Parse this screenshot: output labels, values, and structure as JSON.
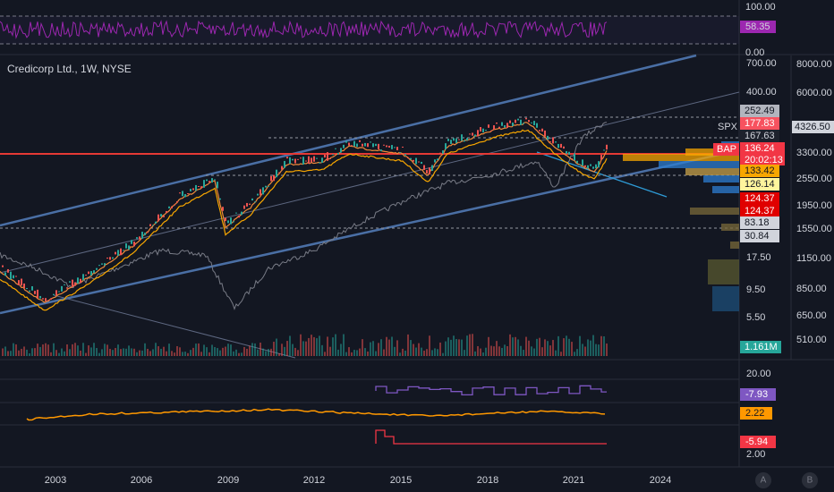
{
  "rsi_pane": {
    "axis": [
      "100.00",
      "0.00"
    ],
    "tag": "58.35"
  },
  "main_pane": {
    "title": "Credicorp Ltd., 1W, NYSE",
    "price_axis": [
      "700.00",
      "400.00",
      "17.50",
      "9.50",
      "5.50"
    ],
    "tags": [
      "252.49",
      "177.83",
      "167.63",
      "136.24",
      "133.42",
      "126.14",
      "124.37",
      "124.37",
      "83.18",
      "30.84"
    ],
    "countdown": "20:02:13",
    "volume_tag": "1.161M",
    "index_axis": [
      "8000.00",
      "6000.00",
      "3300.00",
      "2550.00",
      "1950.00",
      "1550.00",
      "1150.00",
      "850.00",
      "650.00",
      "510.00"
    ],
    "index_tag": "4326.50",
    "labels": [
      "SPX",
      "BAP"
    ]
  },
  "indicator_panes": {
    "axis": [
      "20.00",
      "2.00"
    ],
    "tags": [
      "-7.93",
      "2.22",
      "-5.94"
    ]
  },
  "time_axis": [
    "2003",
    "2006",
    "2009",
    "2012",
    "2015",
    "2018",
    "2021",
    "2024"
  ],
  "buttons": [
    "A",
    "B"
  ]
}
